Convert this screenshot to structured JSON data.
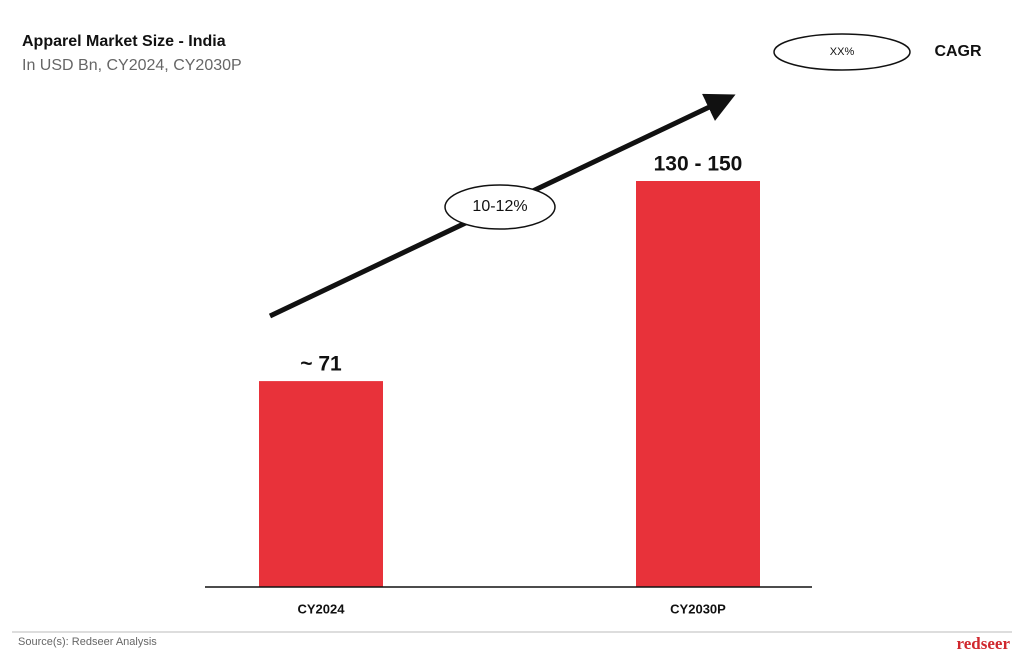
{
  "chart_data": {
    "type": "bar",
    "title": "Apparel Market Size - India",
    "subtitle": "In USD Bn, CY2024, CY2030P",
    "categories": [
      "CY2024",
      "CY2030P"
    ],
    "values": [
      71,
      140
    ],
    "value_labels": [
      "~ 71",
      "130 - 150"
    ],
    "color": "#e8323a",
    "growth_annotation": "10-12%",
    "legend": {
      "symbol": "XX%",
      "label": "CAGR"
    },
    "source": "Source(s): Redseer Analysis",
    "logo": "redseer"
  }
}
